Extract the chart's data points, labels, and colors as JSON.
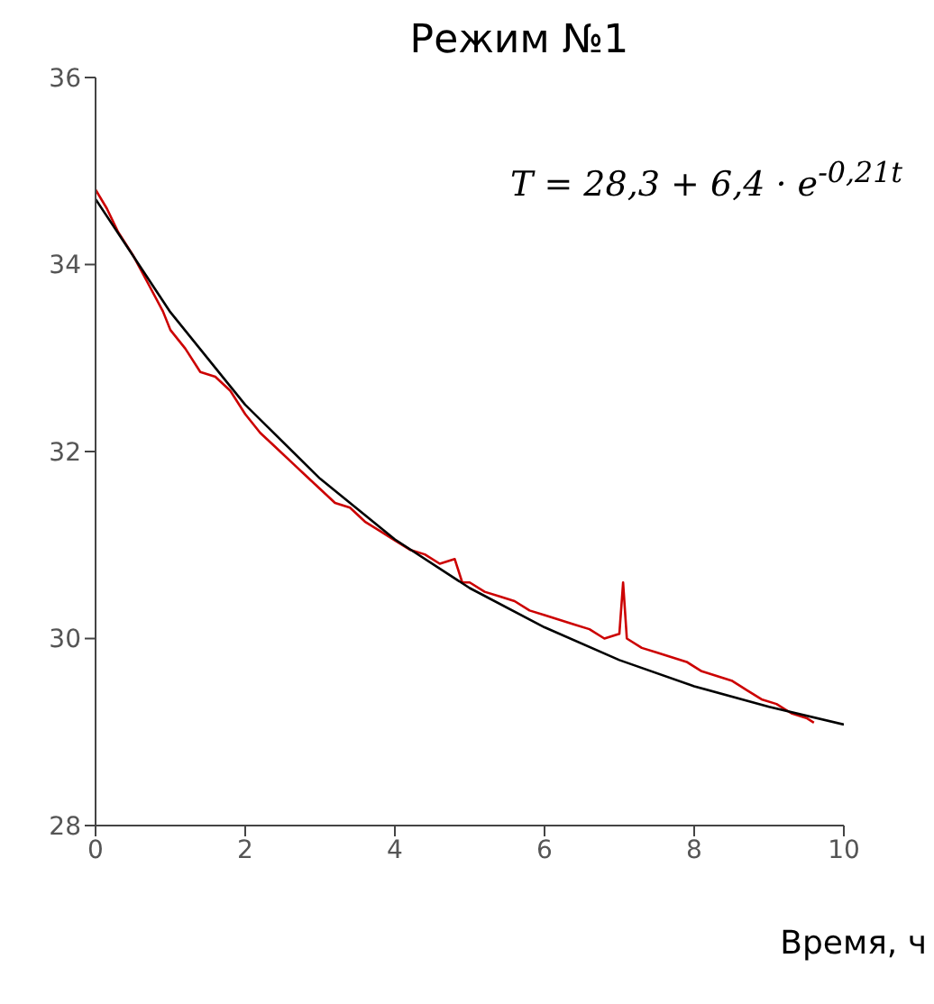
{
  "chart_data": {
    "type": "line",
    "title": "Режим №1",
    "xlabel": "Время, ч",
    "annotations": [
      "T = 28,3 + 6,4 · e$^{-0,21t}$"
    ],
    "xlim": [
      0,
      10
    ],
    "xticks": [
      0,
      2,
      4,
      6,
      8,
      10
    ],
    "ylim": [
      28,
      36
    ],
    "yticks": [
      28,
      30,
      32,
      34,
      36
    ],
    "grid": false,
    "series": [
      {
        "color": "#cc0000",
        "x": [
          0,
          0.15,
          0.3,
          0.5,
          0.7,
          0.9,
          1.0,
          1.2,
          1.4,
          1.6,
          1.8,
          2.0,
          2.2,
          2.4,
          2.6,
          2.8,
          3.0,
          3.2,
          3.4,
          3.6,
          3.8,
          4.0,
          4.2,
          4.4,
          4.6,
          4.8,
          4.9,
          5.0,
          5.2,
          5.4,
          5.6,
          5.8,
          6.0,
          6.2,
          6.4,
          6.6,
          6.8,
          7.0,
          7.05,
          7.1,
          7.3,
          7.5,
          7.7,
          7.9,
          8.1,
          8.3,
          8.5,
          8.7,
          8.9,
          9.1,
          9.3,
          9.5,
          9.6
        ],
        "values": [
          34.8,
          34.6,
          34.35,
          34.1,
          33.8,
          33.5,
          33.3,
          33.1,
          32.85,
          32.8,
          32.65,
          32.4,
          32.2,
          32.05,
          31.9,
          31.75,
          31.6,
          31.45,
          31.4,
          31.25,
          31.15,
          31.05,
          30.95,
          30.9,
          30.8,
          30.85,
          30.6,
          30.6,
          30.5,
          30.45,
          30.4,
          30.3,
          30.25,
          30.2,
          30.15,
          30.1,
          30.0,
          30.05,
          30.6,
          30.0,
          29.9,
          29.85,
          29.8,
          29.75,
          29.65,
          29.6,
          29.55,
          29.45,
          29.35,
          29.3,
          29.2,
          29.15,
          29.1
        ]
      },
      {
        "color": "#000000",
        "x": [
          0,
          1,
          2,
          3,
          4,
          5,
          6,
          7,
          8,
          9,
          10
        ],
        "values": [
          34.7,
          33.49,
          32.5,
          31.71,
          31.06,
          30.54,
          30.12,
          29.77,
          29.49,
          29.27,
          29.08
        ]
      }
    ]
  }
}
